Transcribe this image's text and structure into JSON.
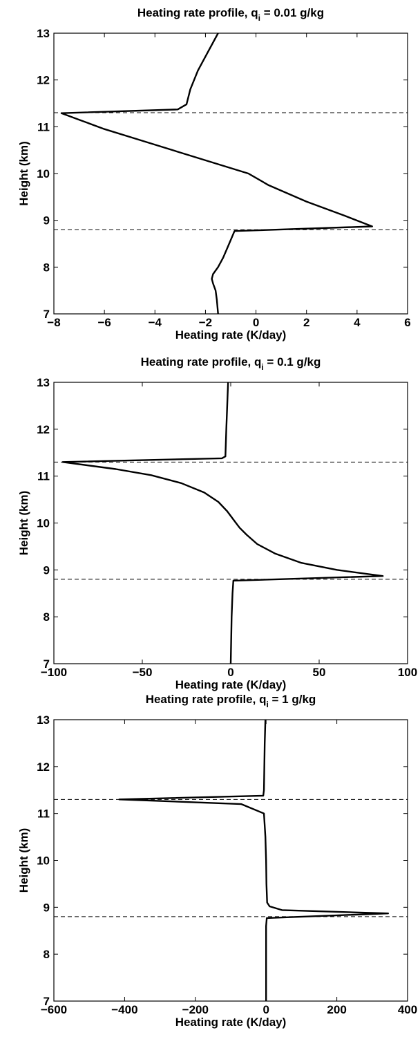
{
  "chart_data": [
    {
      "type": "line",
      "title": {
        "prefix": "Heating rate profile, q",
        "subscript": "i",
        "suffix": " = 0.01 g/kg"
      },
      "xlabel": "Heating rate (K/day)",
      "ylabel": "Height (km)",
      "xlim": [
        -8,
        6
      ],
      "ylim": [
        7,
        13
      ],
      "xticks": [
        -8,
        -6,
        -4,
        -2,
        0,
        2,
        4,
        6
      ],
      "xtick_labels": [
        "−8",
        "−6",
        "−4",
        "−2",
        "0",
        "2",
        "4",
        "6"
      ],
      "yticks": [
        7,
        8,
        9,
        10,
        11,
        12,
        13
      ],
      "ytick_labels": [
        "7",
        "8",
        "9",
        "10",
        "11",
        "12",
        "13"
      ],
      "grid": false,
      "reference_lines": [
        8.8,
        11.3
      ],
      "series": [
        {
          "x": [
            -1.5,
            -1.55,
            -1.6,
            -1.7,
            -1.75,
            -1.7,
            -1.5,
            -1.3,
            -1.1,
            -0.85,
            4.6,
            3.5,
            2.0,
            0.5,
            -0.3,
            -1.5,
            -3.0,
            -4.5,
            -6.0,
            -7.0,
            -7.7,
            -3.1,
            -2.75,
            -2.6,
            -2.3,
            -2.0,
            -1.7,
            -1.5
          ],
          "y": [
            7.0,
            7.3,
            7.5,
            7.65,
            7.75,
            7.85,
            8.0,
            8.2,
            8.45,
            8.77,
            8.87,
            9.1,
            9.4,
            9.75,
            10.0,
            10.2,
            10.45,
            10.7,
            10.95,
            11.15,
            11.29,
            11.37,
            11.48,
            11.8,
            12.2,
            12.5,
            12.8,
            13.0
          ]
        }
      ]
    },
    {
      "type": "line",
      "title": {
        "prefix": "Heating rate profile, q",
        "subscript": "i",
        "suffix": " = 0.1 g/kg"
      },
      "xlabel": "Heating rate (K/day)",
      "ylabel": "Height (km)",
      "xlim": [
        -100,
        100
      ],
      "ylim": [
        7,
        13
      ],
      "xticks": [
        -100,
        -50,
        0,
        50,
        100
      ],
      "xtick_labels": [
        "−100",
        "−50",
        "0",
        "50",
        "100"
      ],
      "yticks": [
        7,
        8,
        9,
        10,
        11,
        12,
        13
      ],
      "ytick_labels": [
        "7",
        "8",
        "9",
        "10",
        "11",
        "12",
        "13"
      ],
      "grid": false,
      "reference_lines": [
        8.8,
        11.3
      ],
      "series": [
        {
          "x": [
            0,
            0.5,
            1.0,
            1.5,
            86,
            60,
            40,
            25,
            15,
            9,
            5,
            2,
            -2,
            -7,
            -15,
            -28,
            -45,
            -65,
            -95,
            -5,
            -3,
            -2.5,
            -2,
            -1.5
          ],
          "y": [
            7.0,
            8.0,
            8.5,
            8.77,
            8.87,
            9.0,
            9.15,
            9.35,
            9.55,
            9.75,
            9.9,
            10.05,
            10.25,
            10.45,
            10.65,
            10.85,
            11.02,
            11.15,
            11.3,
            11.38,
            11.42,
            12.0,
            12.5,
            13.0
          ]
        }
      ]
    },
    {
      "type": "line",
      "title": {
        "prefix": "Heating rate profile, q",
        "subscript": "i",
        "suffix": " = 1 g/kg"
      },
      "xlabel": "Heating rate (K/day)",
      "ylabel": "Height (km)",
      "xlim": [
        -600,
        400
      ],
      "ylim": [
        7,
        13
      ],
      "xticks": [
        -600,
        -400,
        -200,
        0,
        200,
        400
      ],
      "xtick_labels": [
        "−600",
        "−400",
        "−200",
        "0",
        "200",
        "400"
      ],
      "yticks": [
        7,
        8,
        9,
        10,
        11,
        12,
        13
      ],
      "ytick_labels": [
        "7",
        "8",
        "9",
        "10",
        "11",
        "12",
        "13"
      ],
      "grid": false,
      "reference_lines": [
        8.8,
        11.3
      ],
      "series": [
        {
          "x": [
            0,
            0,
            0,
            2,
            345,
            45,
            10,
            3,
            1,
            0,
            -2,
            -6,
            -70,
            -415,
            -8,
            -6,
            -4,
            -2
          ],
          "y": [
            7.0,
            8.0,
            8.6,
            8.77,
            8.87,
            8.94,
            9.02,
            9.1,
            9.5,
            10.0,
            10.5,
            11.0,
            11.2,
            11.3,
            11.38,
            11.5,
            12.5,
            13.0
          ]
        }
      ]
    }
  ]
}
